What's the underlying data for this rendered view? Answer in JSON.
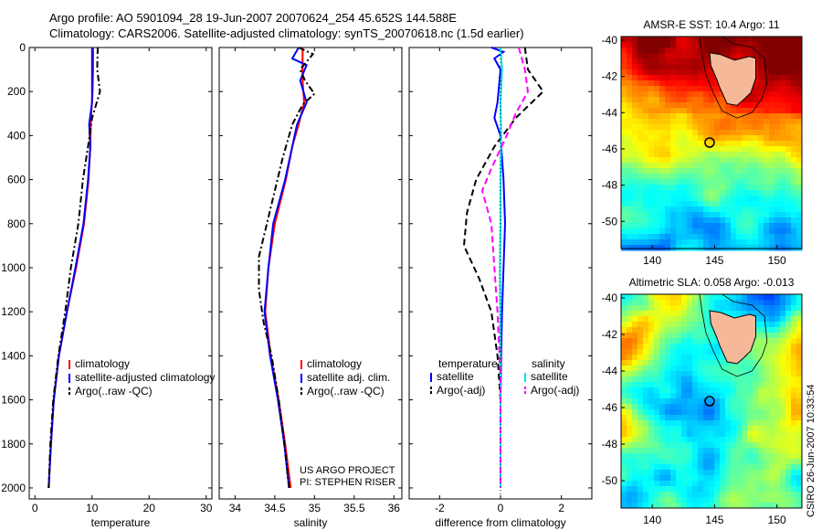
{
  "header": {
    "title_line1": "Argo profile: AO 5901094_28 19-Jun-2007 20070624_254 45.652S 144.588E",
    "title_line2": "Climatology: CARS2006. Satellite-adjusted climatology: synTS_20070618.nc (1.5d earlier)"
  },
  "credit": {
    "project": "US ARGO PROJECT",
    "pi": "PI: STEPHEN RISER",
    "stamp": "CSIRO 26-Jun-2007 10:33:54"
  },
  "colors": {
    "climatology": "#ff0000",
    "satellite": "#0000ff",
    "argo": "#000000",
    "salinity_satellite": "#00e5ee",
    "salinity_argo": "#ff00ff",
    "land": "#f5b99a"
  },
  "chart_data": [
    {
      "type": "line",
      "name": "temperature-panel",
      "xlabel": "temperature",
      "ylabel": "",
      "xlim": [
        -1,
        31
      ],
      "ylim": [
        2050,
        0
      ],
      "x_ticks": [
        0,
        10,
        20,
        30
      ],
      "y_ticks": [
        0,
        200,
        400,
        600,
        800,
        1000,
        1200,
        1400,
        1600,
        1800,
        2000
      ],
      "legend": [
        "climatology",
        "satellite-adjusted climatology",
        "Argo(..raw -QC)"
      ],
      "series": [
        {
          "name": "climatology",
          "style": "solid",
          "color": "#ff0000",
          "points": [
            [
              10.2,
              0
            ],
            [
              10.2,
              100
            ],
            [
              10.1,
              200
            ],
            [
              9.8,
              330
            ],
            [
              9.7,
              450
            ],
            [
              9.4,
              600
            ],
            [
              8.6,
              800
            ],
            [
              7.2,
              1000
            ],
            [
              5.6,
              1200
            ],
            [
              4.2,
              1400
            ],
            [
              3.3,
              1600
            ],
            [
              2.8,
              1800
            ],
            [
              2.4,
              2000
            ]
          ]
        },
        {
          "name": "satellite-adjusted climatology",
          "style": "solid",
          "color": "#0000ff",
          "points": [
            [
              10.0,
              0
            ],
            [
              10.0,
              100
            ],
            [
              10.0,
              250
            ],
            [
              9.5,
              350
            ],
            [
              9.7,
              450
            ],
            [
              9.3,
              600
            ],
            [
              8.5,
              800
            ],
            [
              7.1,
              1000
            ],
            [
              5.6,
              1200
            ],
            [
              4.2,
              1400
            ],
            [
              3.3,
              1600
            ],
            [
              2.8,
              1800
            ],
            [
              2.4,
              2000
            ]
          ]
        },
        {
          "name": "Argo(..raw -QC)",
          "style": "dashdot",
          "color": "#000000",
          "points": [
            [
              11.0,
              0
            ],
            [
              10.9,
              100
            ],
            [
              11.4,
              200
            ],
            [
              10.0,
              320
            ],
            [
              9.3,
              450
            ],
            [
              8.4,
              600
            ],
            [
              7.6,
              800
            ],
            [
              6.3,
              1000
            ],
            [
              5.3,
              1200
            ],
            [
              4.1,
              1400
            ],
            [
              3.2,
              1600
            ],
            [
              2.7,
              1800
            ],
            [
              2.4,
              2000
            ]
          ]
        }
      ]
    },
    {
      "type": "line",
      "name": "salinity-panel",
      "xlabel": "salinity",
      "ylabel": "",
      "xlim": [
        33.8,
        36.1
      ],
      "ylim": [
        2050,
        0
      ],
      "x_ticks": [
        34,
        34.5,
        35,
        35.5,
        36
      ],
      "legend": [
        "climatology",
        "satellite adj. clim.",
        "Argo(..raw -QC)"
      ],
      "series": [
        {
          "name": "climatology",
          "style": "solid",
          "color": "#ff0000",
          "points": [
            [
              34.85,
              0
            ],
            [
              34.85,
              150
            ],
            [
              34.87,
              250
            ],
            [
              34.8,
              350
            ],
            [
              34.72,
              450
            ],
            [
              34.64,
              600
            ],
            [
              34.5,
              800
            ],
            [
              34.42,
              1000
            ],
            [
              34.38,
              1200
            ],
            [
              34.45,
              1400
            ],
            [
              34.55,
              1600
            ],
            [
              34.63,
              1800
            ],
            [
              34.7,
              2000
            ]
          ]
        },
        {
          "name": "satellite adj. clim.",
          "style": "solid",
          "color": "#0000ff",
          "points": [
            [
              34.8,
              0
            ],
            [
              34.72,
              50
            ],
            [
              34.9,
              80
            ],
            [
              34.82,
              150
            ],
            [
              34.9,
              250
            ],
            [
              34.78,
              350
            ],
            [
              34.72,
              450
            ],
            [
              34.63,
              600
            ],
            [
              34.48,
              800
            ],
            [
              34.42,
              1000
            ],
            [
              34.37,
              1200
            ],
            [
              34.44,
              1400
            ],
            [
              34.54,
              1600
            ],
            [
              34.62,
              1800
            ],
            [
              34.68,
              2000
            ]
          ]
        },
        {
          "name": "Argo(..raw -QC)",
          "style": "dashdot",
          "color": "#000000",
          "points": [
            [
              34.8,
              0
            ],
            [
              34.98,
              30
            ],
            [
              34.82,
              100
            ],
            [
              34.88,
              150
            ],
            [
              35.0,
              210
            ],
            [
              34.85,
              260
            ],
            [
              34.72,
              350
            ],
            [
              34.6,
              500
            ],
            [
              34.5,
              650
            ],
            [
              34.4,
              800
            ],
            [
              34.3,
              950
            ],
            [
              34.3,
              1100
            ],
            [
              34.36,
              1250
            ],
            [
              34.46,
              1400
            ],
            [
              34.55,
              1600
            ],
            [
              34.62,
              1800
            ],
            [
              34.68,
              2000
            ]
          ]
        }
      ]
    },
    {
      "type": "line",
      "name": "difference-panel",
      "xlabel": "difference from climatology",
      "ylabel": "",
      "xlim": [
        -3.0,
        3.0
      ],
      "ylim": [
        2050,
        0
      ],
      "x_ticks": [
        -2,
        0,
        2
      ],
      "legend": [
        "temperature",
        "satellite",
        "Argo(-adj)",
        "salinity",
        "satellite",
        "Argo(-adj)"
      ],
      "series": [
        {
          "name": "temperature satellite",
          "style": "solid",
          "color": "#0000ff",
          "points": [
            [
              -0.3,
              0
            ],
            [
              0.1,
              20
            ],
            [
              -0.2,
              50
            ],
            [
              0.0,
              100
            ],
            [
              -0.1,
              250
            ],
            [
              -0.2,
              320
            ],
            [
              0.0,
              400
            ],
            [
              0.1,
              600
            ],
            [
              0.15,
              800
            ],
            [
              0.1,
              1000
            ],
            [
              0.05,
              1200
            ],
            [
              0.02,
              1400
            ],
            [
              0.0,
              1600
            ],
            [
              0.0,
              2000
            ]
          ]
        },
        {
          "name": "temperature Argo(-adj)",
          "style": "dashed",
          "color": "#000000",
          "points": [
            [
              0.8,
              0
            ],
            [
              0.9,
              100
            ],
            [
              1.4,
              200
            ],
            [
              0.5,
              320
            ],
            [
              -0.2,
              450
            ],
            [
              -0.8,
              600
            ],
            [
              -1.1,
              750
            ],
            [
              -1.2,
              900
            ],
            [
              -0.7,
              1050
            ],
            [
              -0.3,
              1200
            ],
            [
              -0.1,
              1400
            ],
            [
              0.0,
              1600
            ],
            [
              0.0,
              2000
            ]
          ]
        },
        {
          "name": "salinity satellite",
          "style": "solid",
          "color": "#00e5ee",
          "points": [
            [
              0.0,
              0
            ],
            [
              0.05,
              100
            ],
            [
              0.0,
              250
            ],
            [
              0.02,
              400
            ],
            [
              0.0,
              600
            ],
            [
              0.0,
              800
            ],
            [
              -0.02,
              1000
            ],
            [
              -0.01,
              1200
            ],
            [
              0.0,
              1600
            ],
            [
              0.0,
              2000
            ]
          ]
        },
        {
          "name": "salinity Argo(-adj)",
          "style": "dashed",
          "color": "#ff00ff",
          "points": [
            [
              0.6,
              0
            ],
            [
              0.8,
              100
            ],
            [
              0.9,
              200
            ],
            [
              0.5,
              300
            ],
            [
              0.2,
              400
            ],
            [
              -0.3,
              550
            ],
            [
              -0.6,
              650
            ],
            [
              -0.3,
              800
            ],
            [
              -0.2,
              1000
            ],
            [
              -0.1,
              1200
            ],
            [
              0.0,
              1500
            ],
            [
              0.0,
              2000
            ]
          ]
        }
      ]
    },
    {
      "type": "heatmap",
      "name": "sst-map",
      "title": "AMSR-E SST: 10.4 Argo: 11",
      "xlim": [
        137.5,
        152
      ],
      "ylim": [
        -51.5,
        -39.8
      ],
      "x_ticks": [
        140,
        145,
        150
      ],
      "y_ticks": [
        -40,
        -42,
        -44,
        -46,
        -48,
        -50
      ],
      "float_position": [
        144.6,
        -45.65
      ]
    },
    {
      "type": "heatmap",
      "name": "sla-map",
      "title": "Altimetric SLA: 0.058 Argo: -0.013",
      "xlim": [
        137.5,
        152
      ],
      "ylim": [
        -51.5,
        -39.8
      ],
      "x_ticks": [
        140,
        145,
        150
      ],
      "y_ticks": [
        -40,
        -42,
        -44,
        -46,
        -48,
        -50
      ],
      "float_position": [
        144.6,
        -45.65
      ]
    }
  ]
}
